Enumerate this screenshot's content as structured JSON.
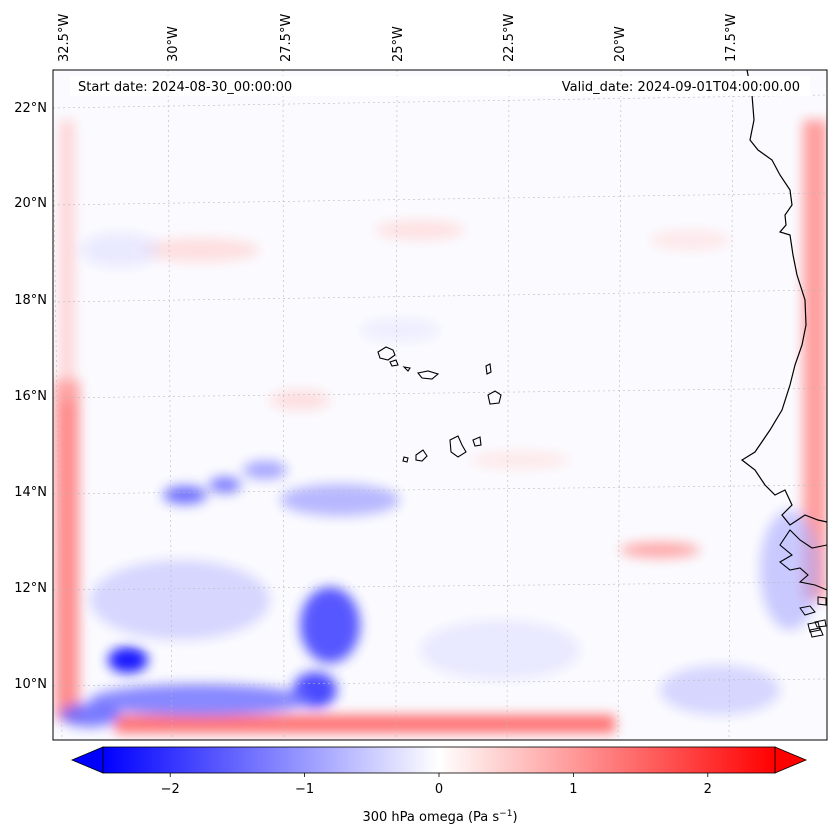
{
  "header": {
    "start_date": "Start date: 2024-08-30_00:00:00",
    "valid_date": "Valid_date: 2024-09-01T04:00:00.00"
  },
  "lon_labels": [
    "32.5°W",
    "30°W",
    "27.5°W",
    "25°W",
    "22.5°W",
    "20°W",
    "17.5°W"
  ],
  "lat_labels": [
    "22°N",
    "20°N",
    "18°N",
    "16°N",
    "14°N",
    "12°N",
    "10°N"
  ],
  "colorbar": {
    "ticks": [
      "−2",
      "−1",
      "0",
      "1",
      "2"
    ],
    "tick_values": [
      -2,
      -1,
      0,
      1,
      2
    ],
    "range": [
      -2.5,
      2.5
    ],
    "extend": "both",
    "label": "300 hPa omega (Pa s",
    "label_exp": "−1",
    "label_close": ")",
    "colors": {
      "min": "#0000ff",
      "mid": "#ffffff",
      "max": "#ff0000"
    }
  },
  "map": {
    "variable": "omega",
    "level": "300 hPa",
    "colormap": "bwr",
    "features": [
      "coastline-west-africa",
      "cape-verde-islands"
    ]
  }
}
